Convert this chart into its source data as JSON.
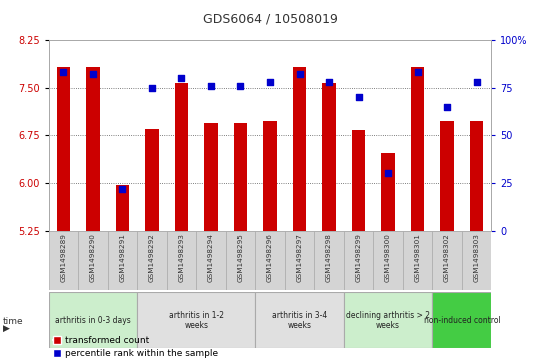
{
  "title": "GDS6064 / 10508019",
  "samples": [
    "GSM1498289",
    "GSM1498290",
    "GSM1498291",
    "GSM1498292",
    "GSM1498293",
    "GSM1498294",
    "GSM1498295",
    "GSM1498296",
    "GSM1498297",
    "GSM1498298",
    "GSM1498299",
    "GSM1498300",
    "GSM1498301",
    "GSM1498302",
    "GSM1498303"
  ],
  "bar_values": [
    7.82,
    7.82,
    5.97,
    6.85,
    7.57,
    6.95,
    6.95,
    6.97,
    7.82,
    7.57,
    6.83,
    6.47,
    7.82,
    6.97,
    6.97
  ],
  "dot_values_pct": [
    83,
    82,
    22,
    75,
    80,
    76,
    76,
    78,
    82,
    78,
    70,
    30,
    83,
    65,
    78
  ],
  "ylim_left": [
    5.25,
    8.25
  ],
  "ylim_right": [
    0,
    100
  ],
  "yticks_left": [
    5.25,
    6.0,
    6.75,
    7.5,
    8.25
  ],
  "yticks_right": [
    0,
    25,
    50,
    75,
    100
  ],
  "bar_color": "#cc0000",
  "dot_color": "#0000cc",
  "groups": [
    {
      "label": "arthritis in 0-3 days",
      "start": 0,
      "end": 3,
      "color": "#cceecc"
    },
    {
      "label": "arthritis in 1-2\nweeks",
      "start": 3,
      "end": 7,
      "color": "#e0e0e0"
    },
    {
      "label": "arthritis in 3-4\nweeks",
      "start": 7,
      "end": 10,
      "color": "#e0e0e0"
    },
    {
      "label": "declining arthritis > 2\nweeks",
      "start": 10,
      "end": 13,
      "color": "#cceecc"
    },
    {
      "label": "non-induced control",
      "start": 13,
      "end": 15,
      "color": "#44cc44"
    }
  ],
  "legend_bar_label": "transformed count",
  "legend_dot_label": "percentile rank within the sample",
  "title_color": "#333333",
  "left_tick_color": "#cc0000",
  "right_tick_color": "#0000cc",
  "bar_width": 0.45,
  "bar_bottom": 5.25
}
